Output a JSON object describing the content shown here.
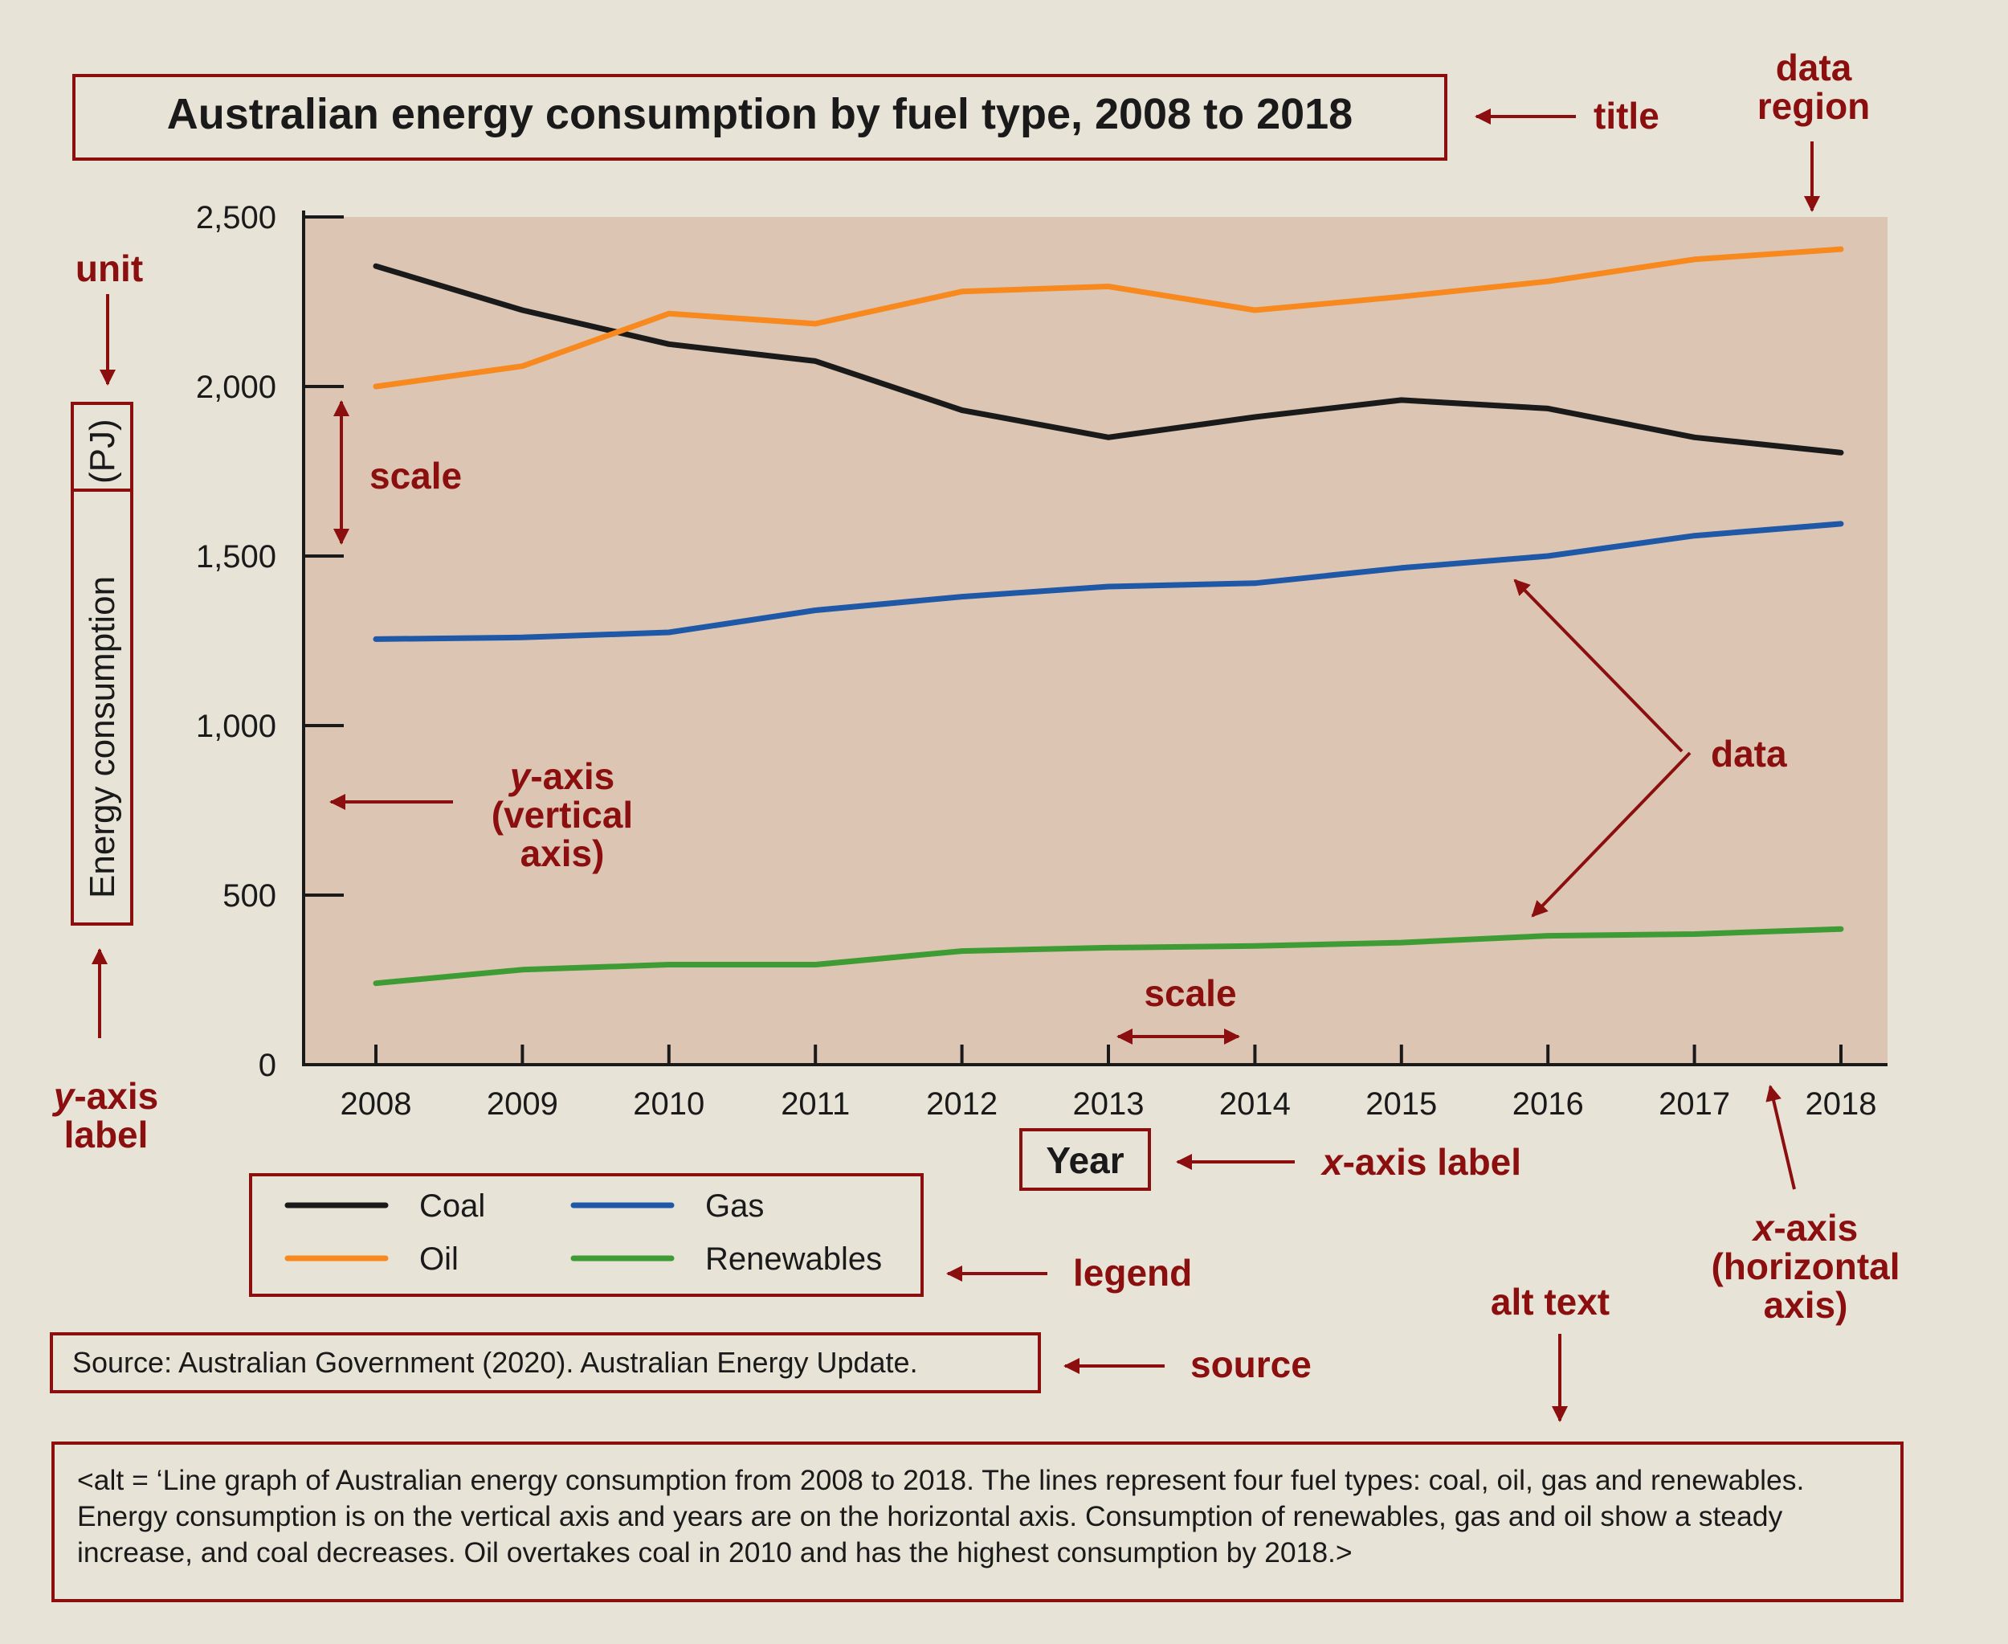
{
  "colors": {
    "annotation": "#8b0f0f",
    "plot_background": "#dcc6b3",
    "page_background": "#e7e4d7",
    "coal": "#1a1a1a",
    "oil": "#f7891f",
    "gas": "#1f58a6",
    "renewables": "#3f9c35"
  },
  "chart_data": {
    "type": "line",
    "title": "Australian energy consumption by fuel type, 2008 to 2018",
    "xlabel": "Year",
    "ylabel_main": "Energy consumption",
    "ylabel_unit": "(PJ)",
    "x": [
      2008,
      2009,
      2010,
      2011,
      2012,
      2013,
      2014,
      2015,
      2016,
      2017,
      2018
    ],
    "x_tick_labels": [
      "2008",
      "2009",
      "2010",
      "2011",
      "2012",
      "2013",
      "2014",
      "2015",
      "2016",
      "2017",
      "2018"
    ],
    "y_ticks": [
      0,
      500,
      1000,
      1500,
      2000,
      2500
    ],
    "y_tick_labels": [
      "0",
      "500",
      "1,000",
      "1,500",
      "2,000",
      "2,500"
    ],
    "ylim": [
      0,
      2500
    ],
    "grid": false,
    "legend_position": "bottom-left",
    "series": [
      {
        "name": "Coal",
        "color": "#1a1a1a",
        "values": [
          2355,
          2225,
          2125,
          2075,
          1930,
          1850,
          1910,
          1960,
          1935,
          1850,
          1805
        ]
      },
      {
        "name": "Oil",
        "color": "#f7891f",
        "values": [
          2000,
          2060,
          2215,
          2185,
          2280,
          2295,
          2225,
          2265,
          2310,
          2375,
          2405
        ]
      },
      {
        "name": "Gas",
        "color": "#1f58a6",
        "values": [
          1255,
          1260,
          1275,
          1340,
          1380,
          1410,
          1420,
          1465,
          1500,
          1560,
          1595
        ]
      },
      {
        "name": "Renewables",
        "color": "#3f9c35",
        "values": [
          240,
          280,
          295,
          295,
          335,
          345,
          350,
          360,
          380,
          385,
          400
        ]
      }
    ],
    "source": "Source: Australian Government (2020). Australian Energy Update."
  },
  "annotations": {
    "title": "title",
    "data_region_line1": "data",
    "data_region_line2": "region",
    "unit": "unit",
    "scale_y": "scale",
    "scale_x": "scale",
    "y_axis_line1_italic": "y",
    "y_axis_line1_rest": "-axis",
    "y_axis_line2": "(vertical",
    "y_axis_line3": "axis)",
    "y_axis_label_line1_italic": "y",
    "y_axis_label_line1_rest": "-axis",
    "y_axis_label_line2": "label",
    "data": "data",
    "x_axis_label_italic": "x",
    "x_axis_label_rest": "-axis label",
    "x_axis_line1_italic": "x",
    "x_axis_line1_rest": "-axis",
    "x_axis_line2": "(horizontal",
    "x_axis_line3": "axis)",
    "legend": "legend",
    "source": "source",
    "alt_text": "alt text"
  },
  "alt_text_body": "<alt = ‘Line graph of Australian energy consumption from 2008 to 2018. The lines represent four fuel types: coal, oil, gas and renewables. Energy consumption is on the vertical axis and years are on the horizontal axis. Consumption of renewables, gas and oil show a steady increase, and coal decreases. Oil overtakes coal in 2010 and has the highest consumption by 2018.>"
}
